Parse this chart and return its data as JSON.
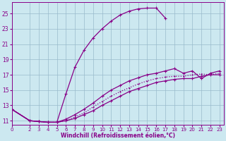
{
  "background_color": "#cce8f0",
  "grid_color": "#99bbcc",
  "line_color": "#880088",
  "xlabel": "Windchill (Refroidissement éolien,°C)",
  "xlabel_color": "#880088",
  "yticks": [
    11,
    13,
    15,
    17,
    19,
    21,
    23,
    25
  ],
  "xticks": [
    0,
    2,
    3,
    4,
    5,
    6,
    7,
    8,
    9,
    10,
    11,
    12,
    13,
    14,
    15,
    16,
    17,
    18,
    19,
    20,
    21,
    22,
    23
  ],
  "xlim": [
    0,
    23.5
  ],
  "ylim": [
    10.5,
    26.5
  ],
  "series": [
    {
      "x": [
        0,
        2,
        3,
        4,
        5,
        6,
        7,
        8,
        9,
        10,
        11,
        12,
        13,
        14,
        15,
        16,
        17
      ],
      "y": [
        12.5,
        11.0,
        10.9,
        10.8,
        10.8,
        14.5,
        18.0,
        20.2,
        21.8,
        23.0,
        24.0,
        24.8,
        25.3,
        25.6,
        25.7,
        25.7,
        24.4
      ],
      "linestyle": "-",
      "linewidth": 0.9,
      "markersize": 3
    },
    {
      "x": [
        0,
        2,
        3,
        4,
        5,
        6,
        7,
        8,
        9,
        10,
        11,
        12,
        13,
        14,
        15,
        16,
        17,
        18,
        19,
        20,
        21,
        22,
        23
      ],
      "y": [
        12.5,
        11.0,
        10.9,
        10.8,
        10.8,
        11.0,
        11.5,
        12.0,
        12.8,
        13.5,
        14.2,
        14.8,
        15.3,
        15.8,
        16.2,
        16.5,
        16.7,
        16.8,
        16.8,
        17.0,
        17.1,
        17.0,
        17.2
      ],
      "linestyle": ":",
      "linewidth": 0.9,
      "markersize": 2
    },
    {
      "x": [
        0,
        2,
        3,
        4,
        5,
        6,
        7,
        8,
        9,
        10,
        11,
        12,
        13,
        14,
        15,
        16,
        17,
        18,
        19,
        20,
        21,
        22,
        23
      ],
      "y": [
        12.5,
        11.0,
        10.9,
        10.8,
        10.8,
        11.2,
        11.8,
        12.5,
        13.3,
        14.2,
        15.0,
        15.6,
        16.2,
        16.6,
        17.0,
        17.2,
        17.5,
        17.8,
        17.2,
        17.5,
        16.5,
        17.2,
        17.5
      ],
      "linestyle": "-",
      "linewidth": 0.9,
      "markersize": 2.5
    },
    {
      "x": [
        0,
        2,
        3,
        4,
        5,
        6,
        7,
        8,
        9,
        10,
        11,
        12,
        13,
        14,
        15,
        16,
        17,
        18,
        19,
        20,
        21,
        22,
        23
      ],
      "y": [
        12.5,
        11.0,
        10.9,
        10.8,
        10.8,
        11.0,
        11.3,
        11.8,
        12.3,
        13.0,
        13.6,
        14.2,
        14.8,
        15.2,
        15.6,
        16.0,
        16.2,
        16.4,
        16.5,
        16.5,
        16.8,
        17.0,
        17.0
      ],
      "linestyle": "-",
      "linewidth": 0.9,
      "markersize": 2.5
    }
  ]
}
